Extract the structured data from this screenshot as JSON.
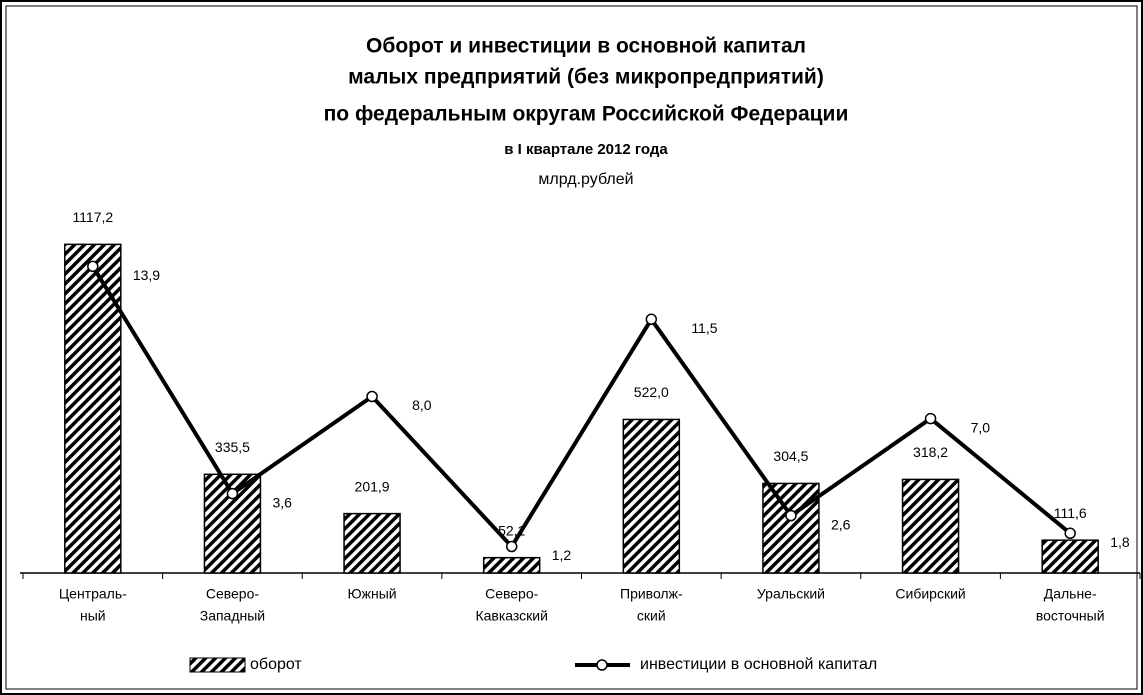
{
  "chart_data": {
    "type": "bar",
    "title": [
      "Оборот и инвестиции в основной капитал",
      "малых предприятий (без микропредприятий)",
      "по федеральным округам Российской Федерации"
    ],
    "subtitle": "в I квартале 2012 года",
    "unit": "млрд.рублей",
    "categories": [
      [
        "Централь-",
        "ный"
      ],
      [
        "Северо-",
        "Западный"
      ],
      [
        "Южный"
      ],
      [
        "Северо-",
        "Кавказский"
      ],
      [
        "Приволж-",
        "ский"
      ],
      [
        "Уральский"
      ],
      [
        "Сибирский"
      ],
      [
        "Дальне-",
        "восточный"
      ]
    ],
    "ylim": [
      0,
      1200
    ],
    "y2lim": [
      0,
      16
    ],
    "series": [
      {
        "name": "оборот",
        "type": "bar",
        "color": "#000000",
        "values": [
          1117.2,
          335.5,
          201.9,
          52.1,
          522.0,
          304.5,
          318.2,
          111.6
        ],
        "value_labels": [
          "1117,2",
          "335,5",
          "201,9",
          "52,1",
          "522,0",
          "304,5",
          "318,2",
          "111,6"
        ]
      },
      {
        "name": "инвестиции в основной капитал",
        "type": "line",
        "axis": "y2",
        "color": "#000000",
        "values": [
          13.9,
          3.6,
          8.0,
          1.2,
          11.5,
          2.6,
          7.0,
          1.8
        ],
        "value_labels": [
          "13,9",
          "3,6",
          "8,0",
          "1,2",
          "11,5",
          "2,6",
          "7,0",
          "1,8"
        ]
      }
    ]
  }
}
